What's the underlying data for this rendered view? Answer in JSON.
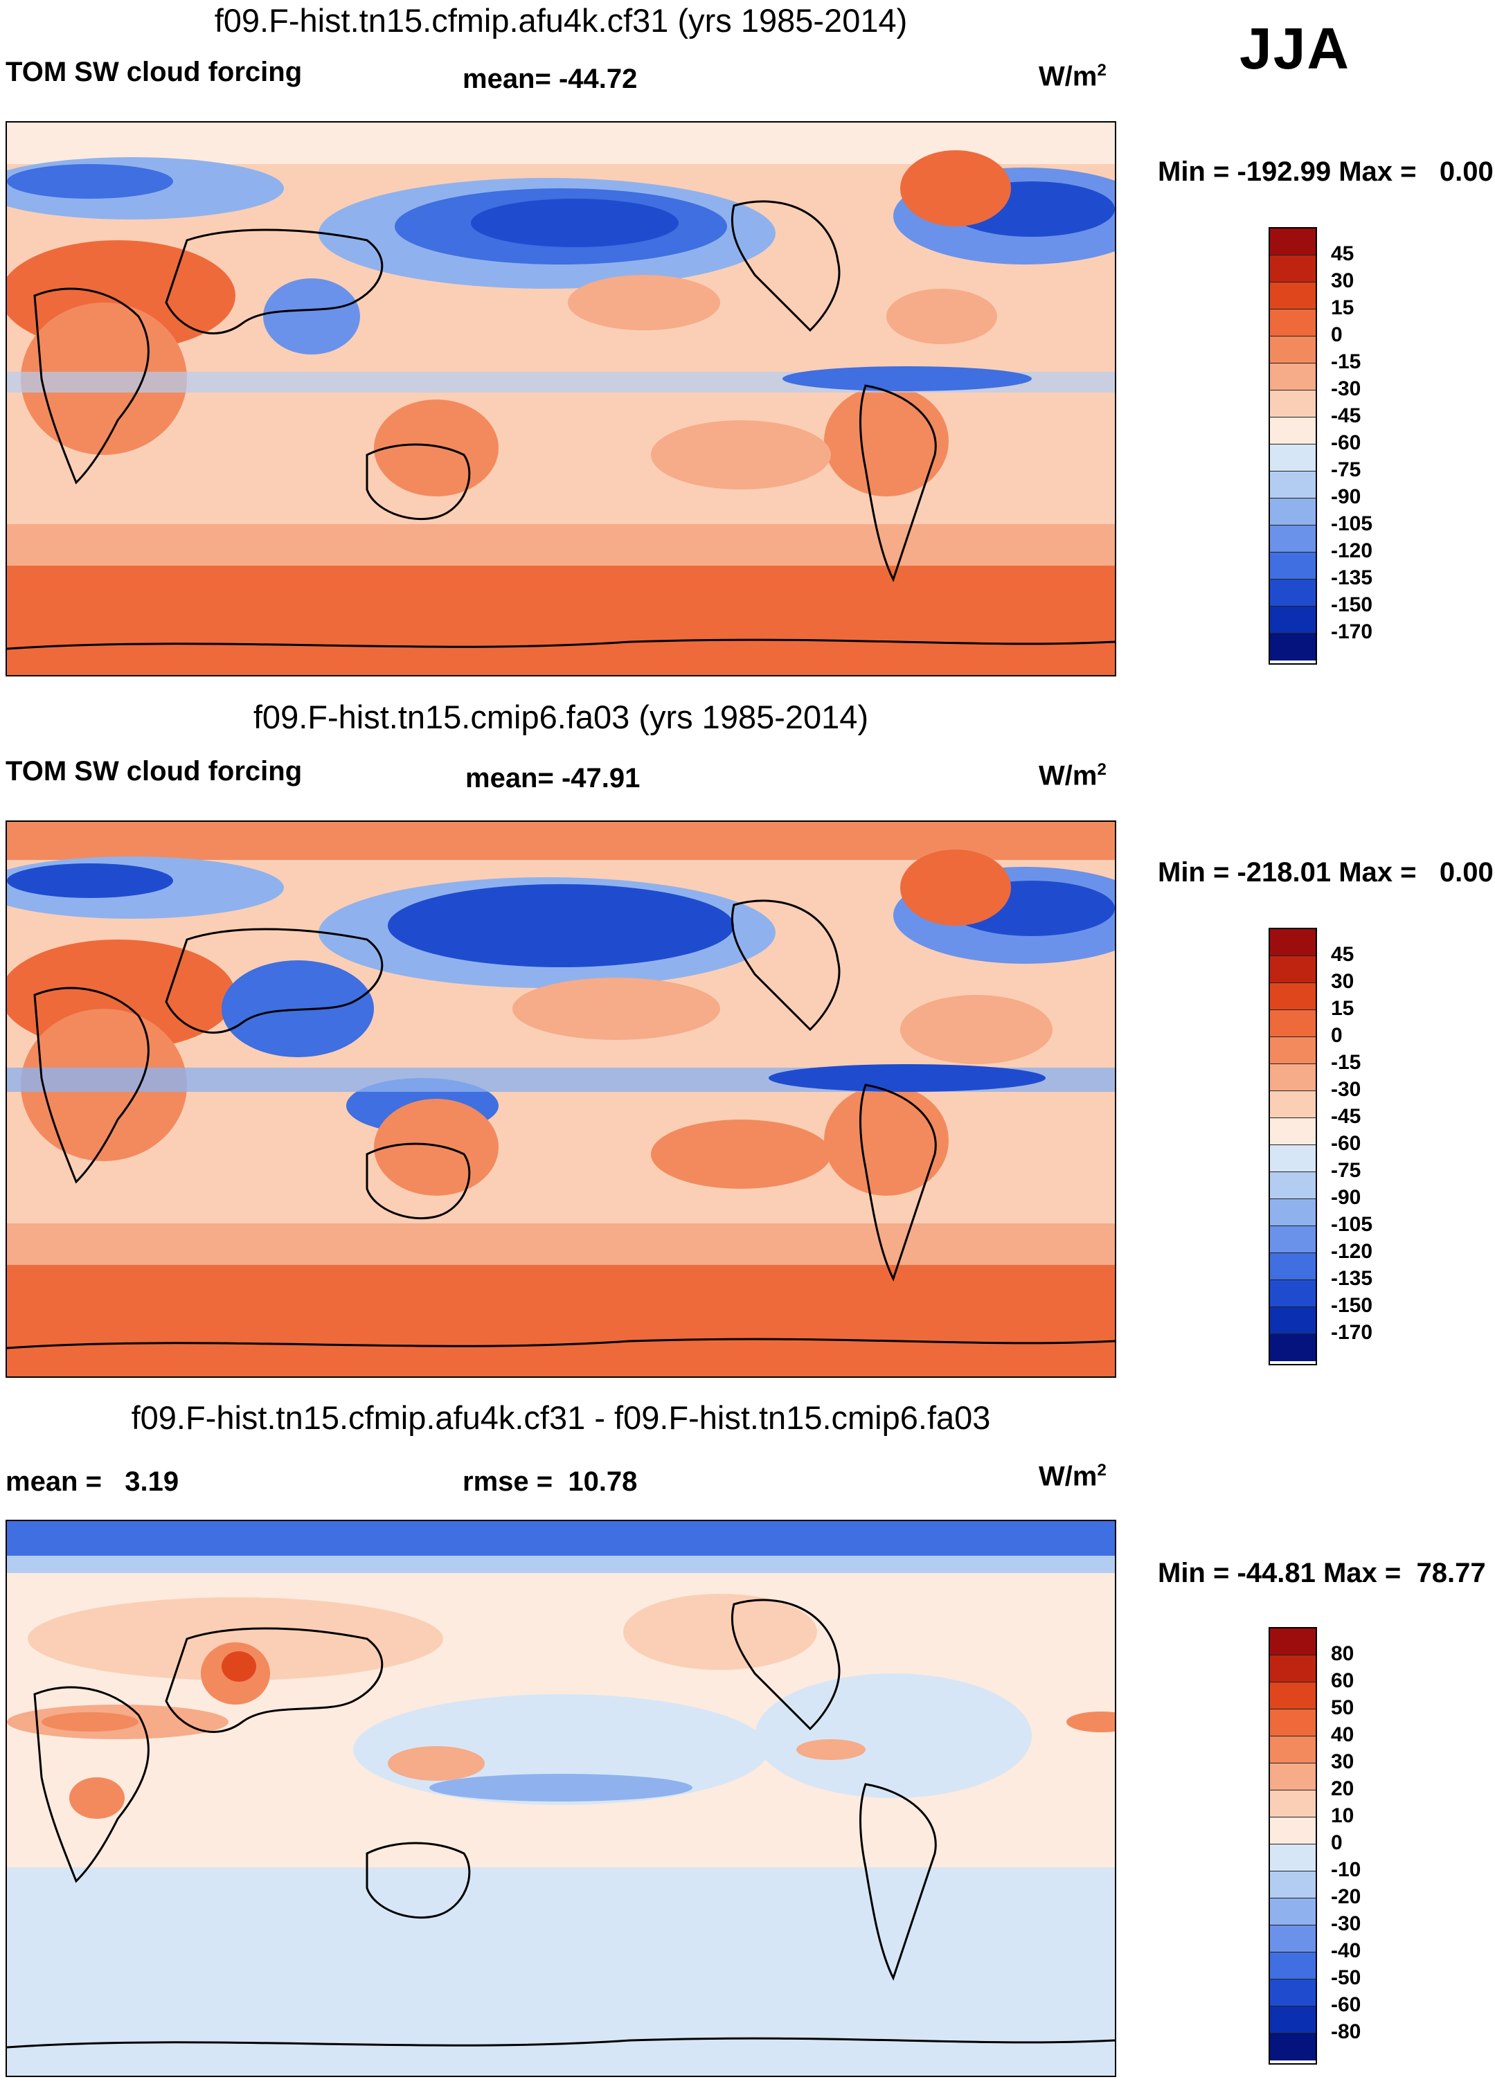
{
  "season": "JJA",
  "units_label": "W/m",
  "units_sup": "2",
  "chart_data": [
    {
      "type": "heatmap",
      "title": "f09.F-hist.tn15.cfmip.afu4k.cf31 (yrs 1985-2014)",
      "left_label": "TOM SW cloud forcing",
      "center_label": "mean= -44.72",
      "units": "W/m2",
      "minmax": "Min = -192.99 Max =   0.00",
      "colorbar_ticks": [
        "45",
        "30",
        "15",
        "0",
        "-15",
        "-30",
        "-45",
        "-60",
        "-75",
        "-90",
        "-105",
        "-120",
        "-135",
        "-150",
        "-170"
      ],
      "colorbar_colors": [
        "#9e0d0d",
        "#bf2411",
        "#e0461c",
        "#ee6a3b",
        "#f28a5e",
        "#f6ab89",
        "#fbcfb5",
        "#fdebdf",
        "#d7e6f6",
        "#b3cdf2",
        "#8fb2ee",
        "#6a92ea",
        "#3f6fe0",
        "#1f4ccf",
        "#0a2fb0",
        "#04137e"
      ]
    },
    {
      "type": "heatmap",
      "title": "f09.F-hist.tn15.cmip6.fa03 (yrs 1985-2014)",
      "left_label": "TOM SW cloud forcing",
      "center_label": "mean= -47.91",
      "units": "W/m2",
      "minmax": "Min = -218.01 Max =   0.00",
      "colorbar_ticks": [
        "45",
        "30",
        "15",
        "0",
        "-15",
        "-30",
        "-45",
        "-60",
        "-75",
        "-90",
        "-105",
        "-120",
        "-135",
        "-150",
        "-170"
      ],
      "colorbar_colors": [
        "#9e0d0d",
        "#bf2411",
        "#e0461c",
        "#ee6a3b",
        "#f28a5e",
        "#f6ab89",
        "#fbcfb5",
        "#fdebdf",
        "#d7e6f6",
        "#b3cdf2",
        "#8fb2ee",
        "#6a92ea",
        "#3f6fe0",
        "#1f4ccf",
        "#0a2fb0",
        "#04137e"
      ]
    },
    {
      "type": "heatmap",
      "title": "f09.F-hist.tn15.cfmip.afu4k.cf31 - f09.F-hist.tn15.cmip6.fa03",
      "left_label": "mean =   3.19",
      "center_label": "rmse =  10.78",
      "units": "W/m2",
      "minmax": "Min = -44.81 Max =  78.77",
      "colorbar_ticks": [
        "80",
        "60",
        "50",
        "40",
        "30",
        "20",
        "10",
        "0",
        "-10",
        "-20",
        "-30",
        "-40",
        "-50",
        "-60",
        "-80"
      ],
      "colorbar_colors": [
        "#9e0d0d",
        "#bf2411",
        "#e0461c",
        "#ee6a3b",
        "#f28a5e",
        "#f6ab89",
        "#fbcfb5",
        "#fdebdf",
        "#d7e6f6",
        "#b3cdf2",
        "#8fb2ee",
        "#6a92ea",
        "#3f6fe0",
        "#1f4ccf",
        "#0a2fb0",
        "#04137e"
      ]
    }
  ]
}
